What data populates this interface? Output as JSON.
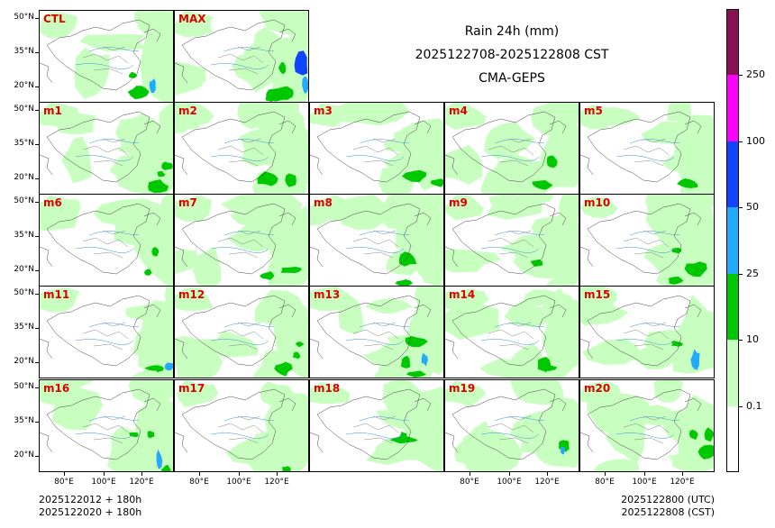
{
  "title": {
    "line1": "Rain 24h (mm)",
    "line2": "2025122708-2025122808 CST",
    "line3": "CMA-GEPS"
  },
  "chart_data": {
    "type": "heatmap",
    "variable": "Rain 24h (mm)",
    "panels": [
      "CTL",
      "MAX",
      "m1",
      "m2",
      "m3",
      "m4",
      "m5",
      "m6",
      "m7",
      "m8",
      "m9",
      "m10",
      "m11",
      "m12",
      "m13",
      "m14",
      "m15",
      "m16",
      "m17",
      "m18",
      "m19",
      "m20"
    ],
    "ylabels": [
      "50°N",
      "35°N",
      "20°N"
    ],
    "xlabels": [
      "80°E",
      "100°E",
      "120°E"
    ],
    "colorbar": {
      "levels": [
        "0.1",
        "10",
        "25",
        "50",
        "100",
        "250"
      ],
      "colors": [
        "#ffffff",
        "#c8ffc0",
        "#00c800",
        "#22aaff",
        "#1144ff",
        "#ff00ff",
        "#881155"
      ]
    }
  },
  "footer": {
    "init_utc": "2025122012 + 180h",
    "init_cst": "2025122020 + 180h",
    "valid_utc": "2025122800 (UTC)",
    "valid_cst": "2025122808 (CST)"
  }
}
